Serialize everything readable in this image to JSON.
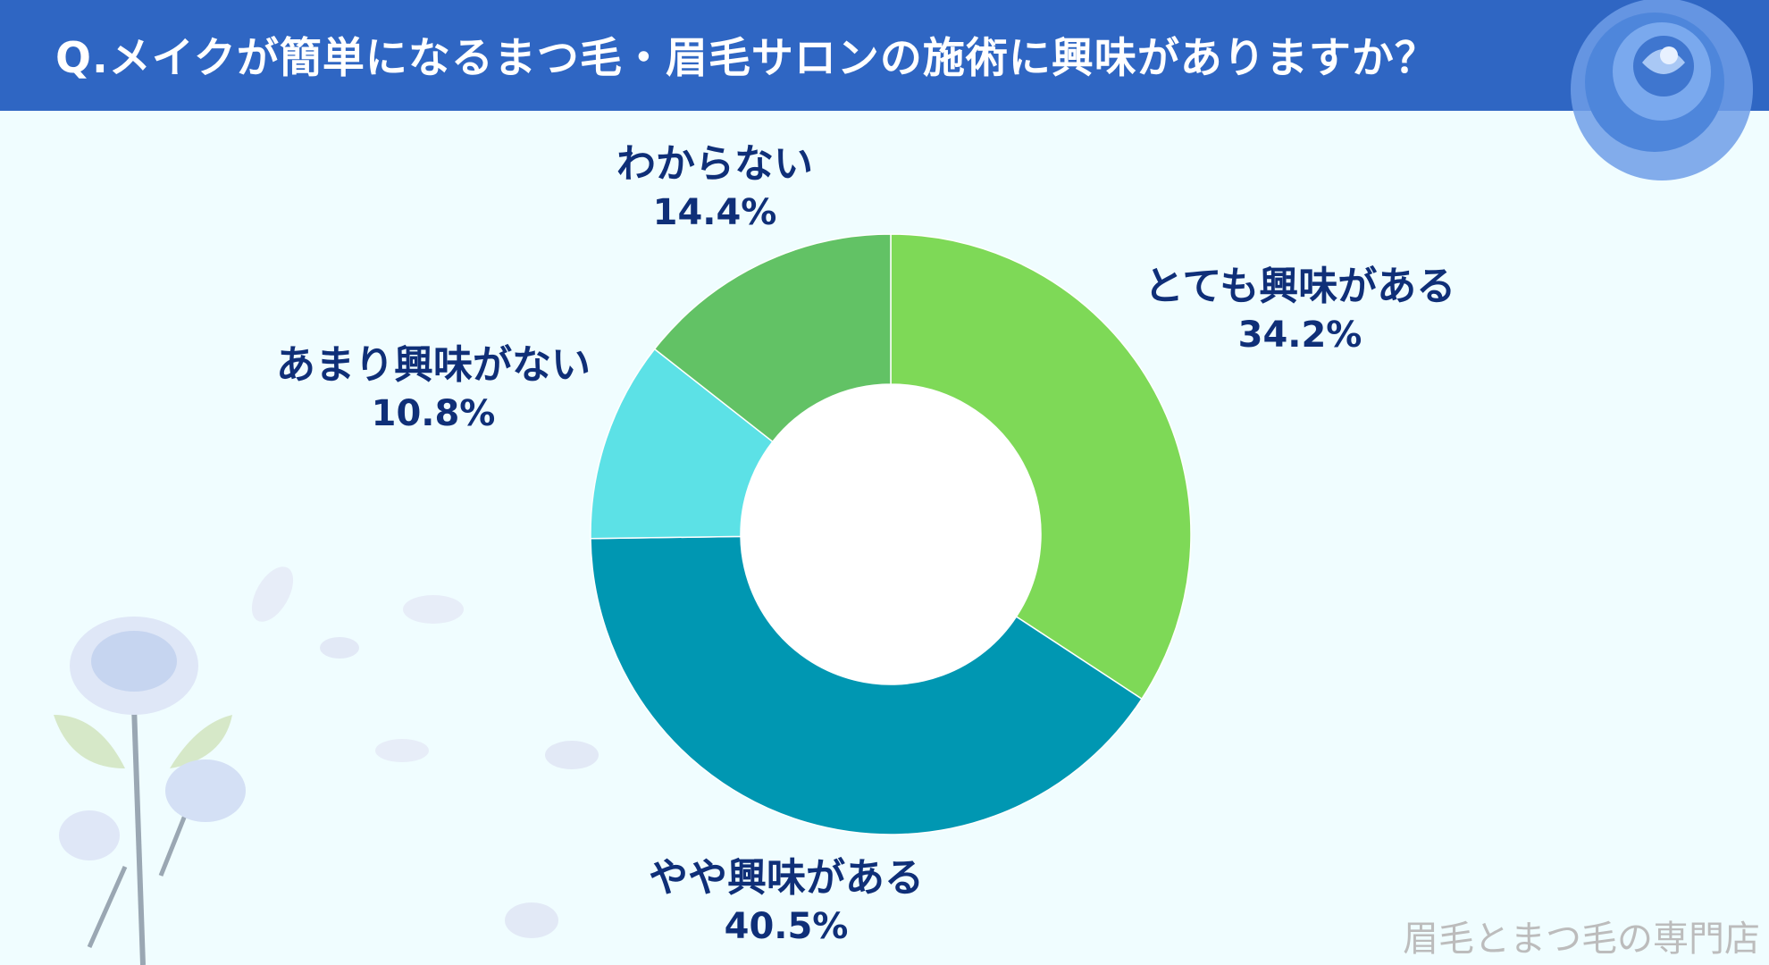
{
  "title": "Q.メイクが簡単になるまつ毛・眉毛サロンの施術に興味がありますか？",
  "watermark": "眉毛とまつ毛の専門店",
  "colors": {
    "header": "#2f66c3",
    "background": "#f0fdff",
    "label": "#0f2f78"
  },
  "chart_data": {
    "type": "pie",
    "style": "donut",
    "title": "Q.メイクが簡単になるまつ毛・眉毛サロンの施術に興味がありますか？",
    "slices": [
      {
        "label": "とても興味がある",
        "value": 34.2,
        "display": "34.2%",
        "color": "#7ed957"
      },
      {
        "label": "やや興味がある",
        "value": 40.5,
        "display": "40.5%",
        "color": "#0097b2"
      },
      {
        "label": "あまり興味がない",
        "value": 10.8,
        "display": "10.8%",
        "color": "#5ce1e6"
      },
      {
        "label": "わからない",
        "value": 14.4,
        "display": "14.4%",
        "color": "#62c265"
      }
    ],
    "start": "12 o'clock",
    "direction": "clockwise"
  }
}
